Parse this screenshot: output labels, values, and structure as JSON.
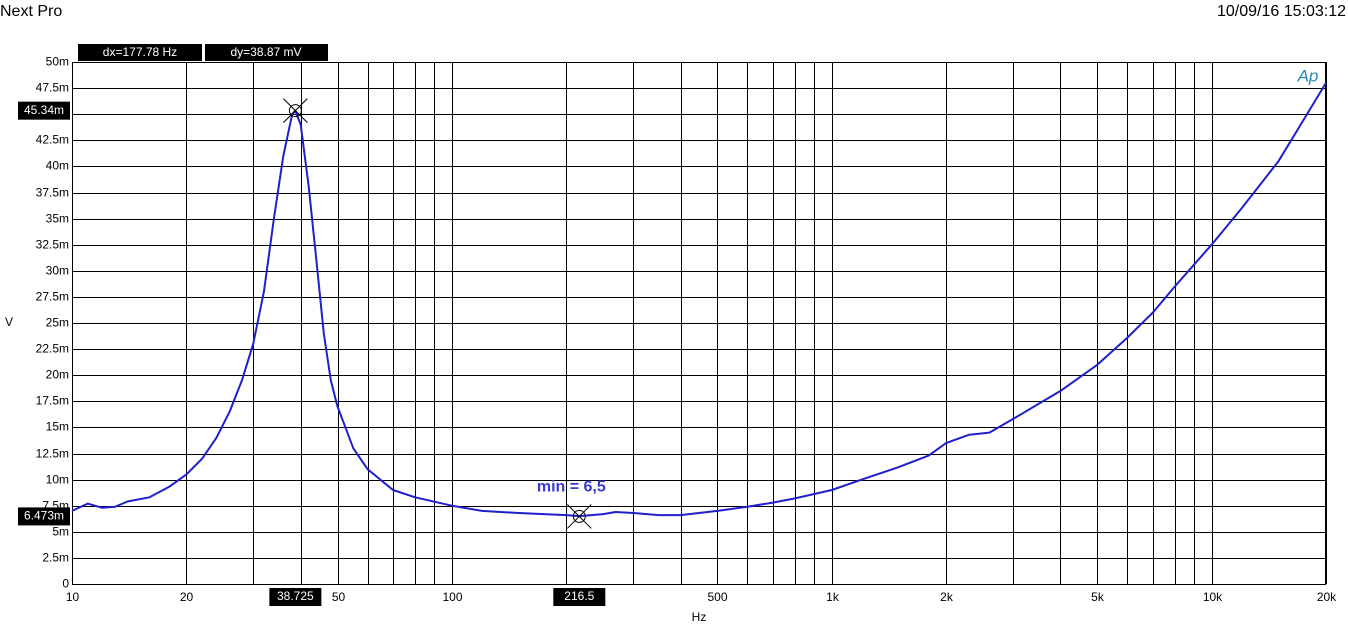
{
  "chart_data": {
    "type": "line",
    "title": "Next Pro",
    "timestamp": "10/09/16 15:03:12",
    "dx_readout": "dx=177.78 Hz",
    "dy_readout": "dy=38.87  mV",
    "logo": "Ap",
    "y_label": "V",
    "x_label": "Hz",
    "annotation": "min = 6,5",
    "x_log": true,
    "grid": true,
    "x": [
      10,
      11,
      12,
      13,
      14,
      16,
      18,
      20,
      22,
      24,
      26,
      28,
      30,
      32,
      34,
      36,
      38,
      38.7,
      40,
      42,
      44,
      46,
      48,
      50,
      55,
      60,
      70,
      80,
      100,
      120,
      150,
      200,
      216.5,
      250,
      270,
      300,
      350,
      400,
      500,
      600,
      700,
      800,
      1000,
      1200,
      1500,
      1800,
      2000,
      2300,
      2600,
      3000,
      4000,
      5000,
      6000,
      7000,
      8000,
      10000,
      12000,
      15000,
      20000
    ],
    "series": [
      {
        "color": "#1f1fcc",
        "values": [
          0.007,
          0.0077,
          0.0073,
          0.0074,
          0.0079,
          0.0083,
          0.0093,
          0.0105,
          0.012,
          0.014,
          0.0165,
          0.0195,
          0.023,
          0.028,
          0.035,
          0.041,
          0.045,
          0.04534,
          0.044,
          0.038,
          0.031,
          0.024,
          0.0195,
          0.017,
          0.013,
          0.011,
          0.009,
          0.0083,
          0.0075,
          0.007,
          0.0068,
          0.0066,
          0.0065,
          0.0067,
          0.0069,
          0.0068,
          0.0066,
          0.0066,
          0.007,
          0.0074,
          0.0078,
          0.0082,
          0.009,
          0.01,
          0.0112,
          0.0123,
          0.0135,
          0.0143,
          0.0145,
          0.0158,
          0.0185,
          0.021,
          0.0236,
          0.026,
          0.0285,
          0.0325,
          0.036,
          0.0405,
          0.048
        ]
      }
    ],
    "cursors": [
      {
        "x": 38.725,
        "x_label": "38.725",
        "y": 0.04534,
        "y_label": "45.34m"
      },
      {
        "x": 216.5,
        "x_label": "216.5",
        "y": 0.006473,
        "y_label": "6.473m"
      }
    ],
    "xlim": [
      10,
      20000
    ],
    "xticks": [
      10,
      20,
      50,
      100,
      500,
      {
        "value": 1000,
        "label": "1k"
      },
      {
        "value": 2000,
        "label": "2k"
      },
      {
        "value": 5000,
        "label": "5k"
      },
      {
        "value": 10000,
        "label": "10k"
      },
      {
        "value": 20000,
        "label": "20k"
      }
    ],
    "xminor": [
      30,
      40,
      60,
      70,
      80,
      90,
      200,
      300,
      400,
      600,
      700,
      800,
      900,
      3000,
      4000,
      6000,
      7000,
      8000,
      9000
    ],
    "ylim": [
      0,
      0.05
    ],
    "yticks": [
      0,
      {
        "value": 0.0025,
        "label": "2.5m"
      },
      {
        "value": 0.005,
        "label": "5m"
      },
      {
        "value": 0.0075,
        "label": "7.5m"
      },
      {
        "value": 0.01,
        "label": "10m"
      },
      {
        "value": 0.0125,
        "label": "12.5m"
      },
      {
        "value": 0.015,
        "label": "15m"
      },
      {
        "value": 0.0175,
        "label": "17.5m"
      },
      {
        "value": 0.02,
        "label": "20m"
      },
      {
        "value": 0.0225,
        "label": "22.5m"
      },
      {
        "value": 0.025,
        "label": "25m"
      },
      {
        "value": 0.0275,
        "label": "27.5m"
      },
      {
        "value": 0.03,
        "label": "30m"
      },
      {
        "value": 0.0325,
        "label": "32.5m"
      },
      {
        "value": 0.035,
        "label": "35m"
      },
      {
        "value": 0.0375,
        "label": "37.5m"
      },
      {
        "value": 0.04,
        "label": "40m"
      },
      {
        "value": 0.0425,
        "label": "42.5m"
      },
      {
        "value": 0.045,
        "label": "45m"
      },
      {
        "value": 0.0475,
        "label": "47.5m"
      },
      {
        "value": 0.05,
        "label": "50m"
      }
    ]
  }
}
